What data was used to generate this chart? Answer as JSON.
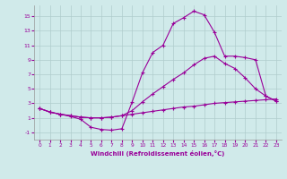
{
  "xlabel": "Windchill (Refroidissement éolien,°C)",
  "bg_color": "#d0eaea",
  "line_color": "#990099",
  "grid_color": "#b0cccc",
  "xlim": [
    -0.5,
    23.5
  ],
  "ylim": [
    -2.0,
    16.5
  ],
  "xticks": [
    0,
    1,
    2,
    3,
    4,
    5,
    6,
    7,
    8,
    9,
    10,
    11,
    12,
    13,
    14,
    15,
    16,
    17,
    18,
    19,
    20,
    21,
    22,
    23
  ],
  "yticks": [
    -1,
    1,
    3,
    5,
    7,
    9,
    11,
    13,
    15
  ],
  "curve_bottom_x": [
    0,
    1,
    2,
    3,
    4,
    5,
    6,
    7,
    8,
    9,
    10,
    11,
    12,
    13,
    14,
    15,
    16,
    17,
    18,
    19,
    20,
    21,
    22,
    23
  ],
  "curve_bottom_y": [
    2.3,
    1.8,
    1.5,
    1.3,
    1.1,
    1.0,
    1.0,
    1.1,
    1.3,
    1.5,
    1.7,
    1.9,
    2.1,
    2.3,
    2.5,
    2.6,
    2.8,
    3.0,
    3.1,
    3.2,
    3.3,
    3.4,
    3.5,
    3.6
  ],
  "curve_mid_x": [
    0,
    1,
    2,
    3,
    4,
    5,
    6,
    7,
    8,
    9,
    10,
    11,
    12,
    13,
    14,
    15,
    16,
    17,
    18,
    19,
    20,
    21,
    22,
    23
  ],
  "curve_mid_y": [
    2.3,
    1.8,
    1.5,
    1.3,
    1.1,
    1.0,
    1.0,
    1.1,
    1.3,
    2.0,
    3.2,
    4.3,
    5.3,
    6.3,
    7.2,
    8.3,
    9.2,
    9.5,
    8.5,
    7.8,
    6.5,
    5.0,
    4.0,
    3.3
  ],
  "curve_top_x": [
    0,
    1,
    2,
    3,
    4,
    5,
    6,
    7,
    8,
    9,
    10,
    11,
    12,
    13,
    14,
    15,
    16,
    17,
    18,
    19,
    20,
    21,
    22,
    23
  ],
  "curve_top_y": [
    2.3,
    1.8,
    1.5,
    1.2,
    0.8,
    -0.3,
    -0.6,
    -0.7,
    -0.5,
    3.2,
    7.2,
    10.0,
    11.0,
    14.0,
    14.8,
    15.7,
    15.2,
    12.8,
    9.5,
    9.5,
    9.3,
    9.0,
    4.0,
    3.3
  ]
}
